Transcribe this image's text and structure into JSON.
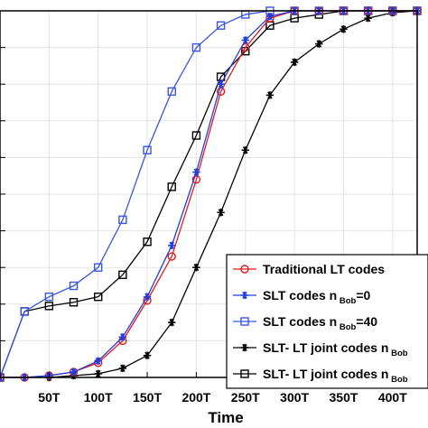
{
  "chart_data": {
    "type": "line",
    "title": "",
    "xlabel": "Time",
    "ylabel": "",
    "x": [
      0,
      25,
      50,
      75,
      100,
      125,
      150,
      175,
      200,
      225,
      250,
      275,
      300,
      325,
      350,
      375,
      400,
      425
    ],
    "xticks": [
      50,
      100,
      150,
      200,
      250,
      300,
      350,
      400
    ],
    "xtick_labels": [
      "50T",
      "100T",
      "150T",
      "200T",
      "250T",
      "300T",
      "350T",
      "400T"
    ],
    "xlim": [
      0,
      425
    ],
    "ylim": [
      0,
      1
    ],
    "grid": true,
    "legend_position": "bottom-right",
    "series": [
      {
        "name": "Traditional LT codes",
        "color": "#e41a1c",
        "marker": "circle",
        "values": [
          0.0,
          0.0,
          0.005,
          0.015,
          0.04,
          0.1,
          0.21,
          0.33,
          0.54,
          0.78,
          0.9,
          0.98,
          1.0,
          1.0,
          1.0,
          1.0,
          1.0,
          1.0
        ]
      },
      {
        "name": "SLT codes n",
        "name_sub": "Bob",
        "name_suffix": "=0",
        "color": "#1f3fe0",
        "marker": "star",
        "values": [
          0.0,
          0.0,
          0.005,
          0.015,
          0.045,
          0.11,
          0.22,
          0.36,
          0.56,
          0.8,
          0.92,
          0.985,
          1.0,
          1.0,
          1.0,
          1.0,
          1.0,
          1.0
        ]
      },
      {
        "name": "SLT codes n",
        "name_sub": "Bob",
        "name_suffix": "=40",
        "color": "#3a56e0",
        "marker": "square",
        "values": [
          0.0,
          0.18,
          0.22,
          0.25,
          0.3,
          0.43,
          0.62,
          0.78,
          0.9,
          0.96,
          0.99,
          1.0,
          1.0,
          1.0,
          1.0,
          1.0,
          1.0,
          1.0
        ]
      },
      {
        "name": "SLT- LT joint codes n",
        "name_sub": "Bob",
        "name_suffix": "",
        "color": "#000000",
        "marker": "star",
        "values": [
          0.0,
          0.0,
          0.0,
          0.005,
          0.01,
          0.025,
          0.06,
          0.15,
          0.3,
          0.45,
          0.62,
          0.77,
          0.86,
          0.91,
          0.95,
          0.98,
          0.995,
          1.0
        ]
      },
      {
        "name": "SLT- LT joint codes n",
        "name_sub": "Bob",
        "name_suffix": "",
        "color": "#000000",
        "marker": "square",
        "values": [
          0.0,
          0.18,
          0.195,
          0.205,
          0.22,
          0.28,
          0.37,
          0.52,
          0.66,
          0.82,
          0.89,
          0.96,
          0.98,
          0.99,
          1.0,
          1.0,
          1.0,
          1.0
        ]
      }
    ]
  }
}
